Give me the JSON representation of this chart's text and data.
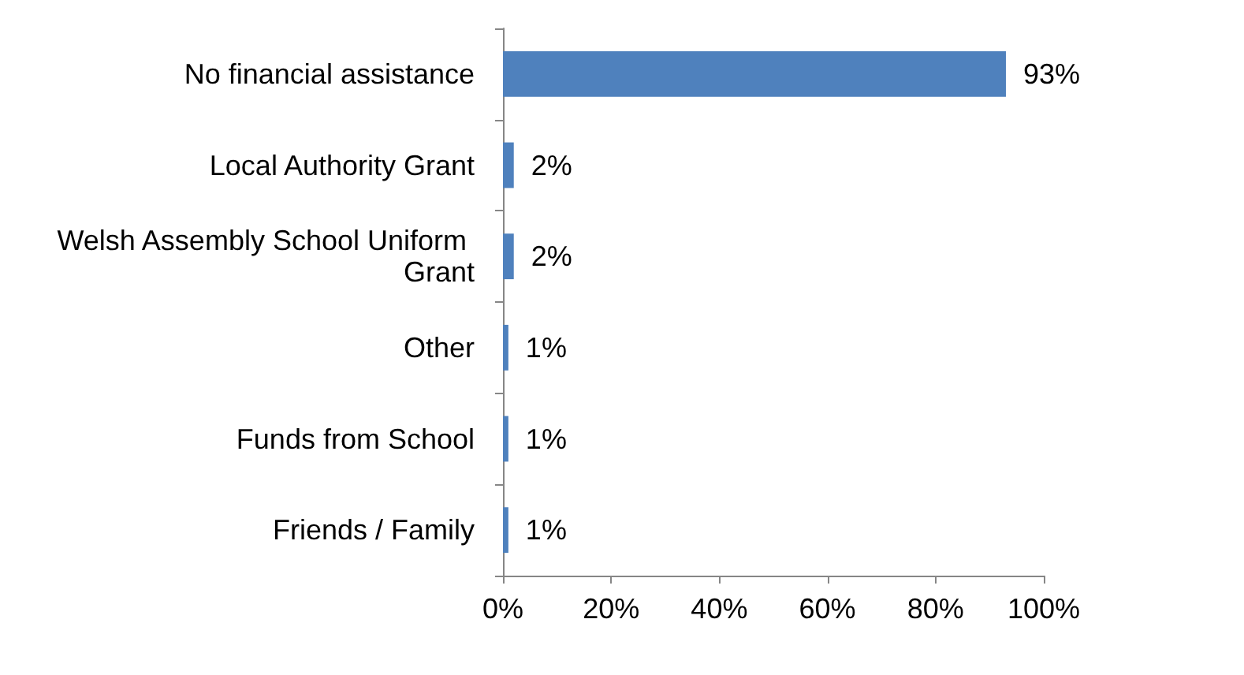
{
  "chart_data": {
    "type": "bar",
    "orientation": "horizontal",
    "categories": [
      "No financial assistance",
      "Local Authority Grant",
      "Welsh Assembly School Uniform Grant",
      "Other",
      "Funds from School",
      "Friends / Family"
    ],
    "values": [
      93,
      2,
      2,
      1,
      1,
      1
    ],
    "value_labels": [
      "93%",
      "2%",
      "2%",
      "1%",
      "1%",
      "1%"
    ],
    "color": "#4f81bd",
    "xlim": [
      0,
      100
    ],
    "xticks": [
      {
        "value": 0,
        "label": "0%"
      },
      {
        "value": 20,
        "label": "20%"
      },
      {
        "value": 40,
        "label": "40%"
      },
      {
        "value": 60,
        "label": "60%"
      },
      {
        "value": 80,
        "label": "80%"
      },
      {
        "value": 100,
        "label": "100%"
      }
    ],
    "grid": false
  }
}
